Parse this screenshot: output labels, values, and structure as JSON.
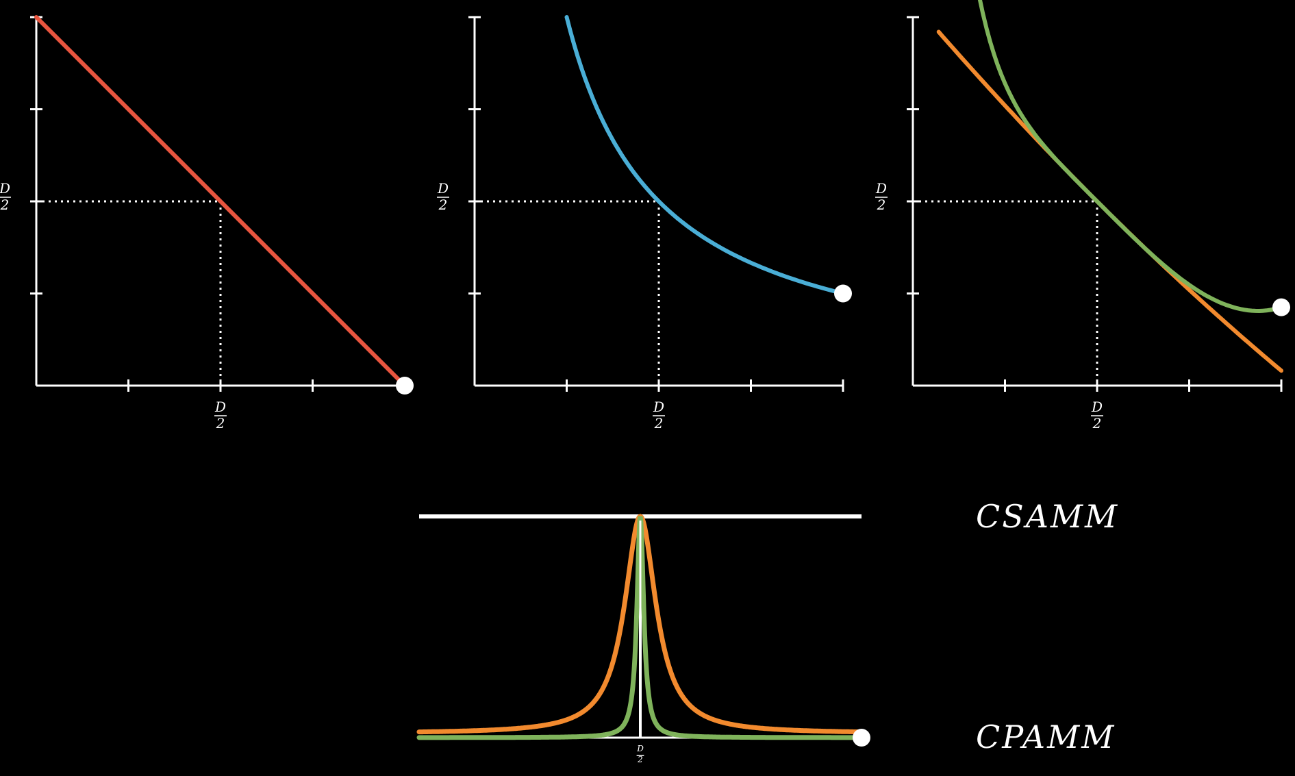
{
  "colors": {
    "background": "#000000",
    "axis": "#ffffff",
    "csamm": "#e8553f",
    "cpamm": "#4aaed6",
    "blend_a": "#f28a2e",
    "blend_b": "#7fb35b"
  },
  "plots": [
    {
      "curves": [
        {
          "kind": "csamm",
          "color_key": "csamm"
        }
      ],
      "x_tick_label": {
        "num": "D",
        "den": "2"
      },
      "y_tick_label": {
        "num": "D",
        "den": "2"
      },
      "has_endpoint": true
    },
    {
      "curves": [
        {
          "kind": "cpamm",
          "color_key": "cpamm"
        }
      ],
      "x_tick_label": {
        "num": "D",
        "den": "2"
      },
      "y_tick_label": {
        "num": "D",
        "den": "2"
      },
      "has_endpoint": true
    },
    {
      "curves": [
        {
          "kind": "blend_a",
          "color_key": "blend_a"
        },
        {
          "kind": "blend_b",
          "color_key": "blend_b"
        }
      ],
      "x_tick_label": {
        "num": "D",
        "den": "2"
      },
      "y_tick_label": {
        "num": "D",
        "den": "2"
      },
      "has_endpoint": true
    }
  ],
  "bottom_diagram": {
    "x_tick_label": {
      "num": "D",
      "den": "2"
    },
    "top_label": "CSAMM",
    "bottom_label": "CPAMM",
    "peaks": [
      {
        "color_key": "blend_a",
        "width": "wide"
      },
      {
        "color_key": "blend_b",
        "width": "narrow"
      }
    ]
  }
}
